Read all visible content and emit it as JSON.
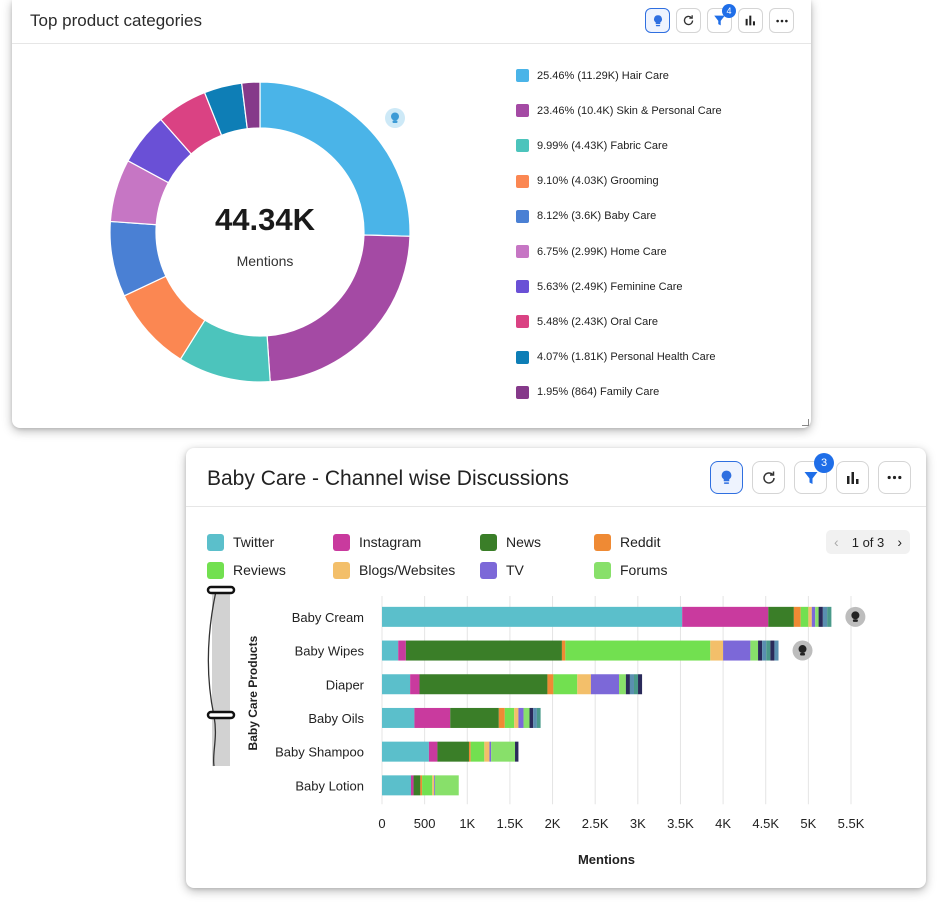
{
  "top_card": {
    "title": "Top product categories",
    "filter_count": "4",
    "center_value": "44.34K",
    "center_label": "Mentions",
    "slices": [
      {
        "label": "25.46% (11.29K) Hair Care",
        "value": 25.46,
        "color": "#4ab4e8"
      },
      {
        "label": "23.46% (10.4K) Skin & Personal Care",
        "value": 23.46,
        "color": "#a44aa4"
      },
      {
        "label": "9.99% (4.43K) Fabric Care",
        "value": 9.99,
        "color": "#4cc4bc"
      },
      {
        "label": "9.10% (4.03K) Grooming",
        "value": 9.1,
        "color": "#fb8752"
      },
      {
        "label": "8.12% (3.6K) Baby Care",
        "value": 8.12,
        "color": "#4a80d4"
      },
      {
        "label": "6.75% (2.99K) Home Care",
        "value": 6.75,
        "color": "#c676c4"
      },
      {
        "label": "5.63% (2.49K) Feminine Care",
        "value": 5.63,
        "color": "#6a50d6"
      },
      {
        "label": "5.48% (2.43K) Oral Care",
        "value": 5.48,
        "color": "#da4283"
      },
      {
        "label": "4.07% (1.81K) Personal Health Care",
        "value": 4.07,
        "color": "#0e7eb6"
      },
      {
        "label": "1.95% (864) Family Care",
        "value": 1.95,
        "color": "#85398a"
      }
    ]
  },
  "bottom_card": {
    "title": "Baby Care - Channel wise Discussions",
    "filter_count": "3",
    "pager": {
      "text": "1 of 3",
      "prev": "‹",
      "next": "›"
    },
    "chart_data": {
      "type": "bar",
      "orientation": "horizontal",
      "stacked": true,
      "xlabel": "Mentions",
      "ylabel": "Baby Care Products",
      "xlim": [
        0,
        5500
      ],
      "xticks": [
        0,
        500,
        1000,
        1500,
        2000,
        2500,
        3000,
        3500,
        4000,
        4500,
        5000,
        5500
      ],
      "xtick_labels": [
        "0",
        "500",
        "1K",
        "1.5K",
        "2K",
        "2.5K",
        "3K",
        "3.5K",
        "4K",
        "4.5K",
        "5K",
        "5.5K"
      ],
      "categories": [
        "Baby Cream",
        "Baby Wipes",
        "Diaper",
        "Baby Oils",
        "Baby Shampoo",
        "Baby Lotion"
      ],
      "series": [
        {
          "name": "Twitter",
          "color": "#5bbfcb",
          "values": [
            3520,
            190,
            330,
            380,
            550,
            340
          ]
        },
        {
          "name": "Instagram",
          "color": "#c93a9e",
          "values": [
            1010,
            90,
            110,
            420,
            100,
            30
          ]
        },
        {
          "name": "News",
          "color": "#3a7e28",
          "values": [
            300,
            1830,
            1500,
            570,
            370,
            80
          ]
        },
        {
          "name": "Reddit",
          "color": "#ef8a34",
          "values": [
            80,
            40,
            70,
            70,
            20,
            20
          ]
        },
        {
          "name": "Reviews",
          "color": "#72e050",
          "values": [
            90,
            1700,
            280,
            110,
            160,
            120
          ]
        },
        {
          "name": "Blogs/Websites",
          "color": "#f3bf6a",
          "values": [
            40,
            150,
            160,
            50,
            60,
            20
          ]
        },
        {
          "name": "TV",
          "color": "#7c68d8",
          "values": [
            40,
            320,
            330,
            60,
            20,
            10
          ]
        },
        {
          "name": "Forums",
          "color": "#88e06a",
          "values": [
            40,
            90,
            80,
            70,
            280,
            280
          ]
        }
      ],
      "others": [
        150,
        240,
        190,
        130,
        40,
        0
      ]
    }
  }
}
